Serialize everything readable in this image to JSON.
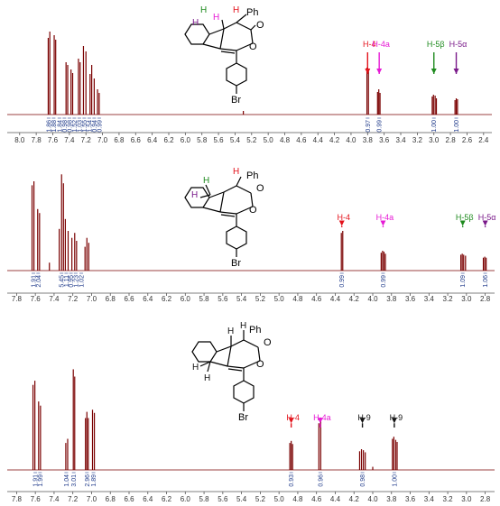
{
  "colors": {
    "spectrum": "#7a0000",
    "integral_text": "#1f3a8a",
    "h4": "#e3121b",
    "h4a": "#e61ad5",
    "h5b": "#1e8a1e",
    "h5a": "#7a1a8a",
    "h9": "#111111",
    "axis": "#555555"
  },
  "chart_data": [
    {
      "type": "line",
      "panel": "top",
      "xlim": [
        8.15,
        2.3
      ],
      "ticks": [
        8.0,
        7.8,
        7.6,
        7.4,
        7.2,
        7.0,
        6.8,
        6.6,
        6.4,
        6.2,
        6.0,
        5.8,
        5.6,
        5.4,
        5.2,
        5.0,
        4.8,
        4.6,
        4.4,
        4.2,
        4.0,
        3.8,
        3.6,
        3.4,
        3.2,
        3.0,
        2.8,
        2.6,
        2.4
      ],
      "tick_labels": [
        "8.0",
        "7.8",
        "7.6",
        "7.4",
        "7.2",
        "7.0",
        "6.8",
        "6.6",
        "6.4",
        "6.2",
        "6.0",
        "5.8",
        "5.6",
        "5.4",
        "5.2",
        "5.0",
        "4.8",
        "4.6",
        "4.4",
        "4.2",
        "4.0",
        "3.8",
        "3.6",
        "3.4",
        "3.2",
        "3.0",
        "2.8",
        "2.6",
        "2.4"
      ],
      "peaks": [
        {
          "x": 7.655,
          "y": 0.85
        },
        {
          "x": 7.636,
          "y": 0.92
        },
        {
          "x": 7.583,
          "y": 0.88
        },
        {
          "x": 7.565,
          "y": 0.83
        },
        {
          "x": 7.44,
          "y": 0.58
        },
        {
          "x": 7.42,
          "y": 0.55
        },
        {
          "x": 7.38,
          "y": 0.5
        },
        {
          "x": 7.36,
          "y": 0.46
        },
        {
          "x": 7.29,
          "y": 0.62
        },
        {
          "x": 7.27,
          "y": 0.58
        },
        {
          "x": 7.23,
          "y": 0.76
        },
        {
          "x": 7.2,
          "y": 0.7
        },
        {
          "x": 7.15,
          "y": 0.45
        },
        {
          "x": 7.13,
          "y": 0.55
        },
        {
          "x": 7.1,
          "y": 0.4
        },
        {
          "x": 7.06,
          "y": 0.28
        },
        {
          "x": 7.04,
          "y": 0.24
        },
        {
          "x": 5.3,
          "y": 0.04
        },
        {
          "x": 3.808,
          "y": 0.52
        },
        {
          "x": 3.79,
          "y": 0.5
        },
        {
          "x": 3.68,
          "y": 0.25
        },
        {
          "x": 3.665,
          "y": 0.28
        },
        {
          "x": 3.65,
          "y": 0.24
        },
        {
          "x": 3.02,
          "y": 0.2
        },
        {
          "x": 3.005,
          "y": 0.22
        },
        {
          "x": 2.985,
          "y": 0.21
        },
        {
          "x": 2.97,
          "y": 0.18
        },
        {
          "x": 2.745,
          "y": 0.16
        },
        {
          "x": 2.73,
          "y": 0.18
        },
        {
          "x": 2.715,
          "y": 0.17
        }
      ],
      "integrals": [
        {
          "x": 7.65,
          "label": "1.86"
        },
        {
          "x": 7.59,
          "label": "1.88"
        },
        {
          "x": 7.52,
          "label": "1.84"
        },
        {
          "x": 7.46,
          "label": "0.98"
        },
        {
          "x": 7.4,
          "label": "0.98"
        },
        {
          "x": 7.34,
          "label": "1.52"
        },
        {
          "x": 7.28,
          "label": "1.03"
        },
        {
          "x": 7.22,
          "label": "1.55"
        },
        {
          "x": 7.16,
          "label": "1.54"
        },
        {
          "x": 7.1,
          "label": "0.94"
        },
        {
          "x": 7.04,
          "label": "0.99"
        },
        {
          "x": 3.8,
          "label": "0.97"
        },
        {
          "x": 3.66,
          "label": "0.99"
        },
        {
          "x": 3.0,
          "label": "1.00"
        },
        {
          "x": 2.73,
          "label": "1.00"
        }
      ],
      "annotations": [
        {
          "label": "H-4",
          "color_key": "h4",
          "x": 3.8
        },
        {
          "label": "H-4a",
          "color_key": "h4a",
          "x": 3.66
        },
        {
          "label": "H-5β",
          "color_key": "h5b",
          "x": 3.0
        },
        {
          "label": "H-5α",
          "color_key": "h5a",
          "x": 2.73
        }
      ]
    },
    {
      "type": "line",
      "panel": "middle",
      "xlim": [
        7.9,
        2.7
      ],
      "ticks": [
        7.8,
        7.6,
        7.4,
        7.2,
        7.0,
        6.8,
        6.6,
        6.4,
        6.2,
        6.0,
        5.8,
        5.6,
        5.4,
        5.2,
        5.0,
        4.8,
        4.6,
        4.4,
        4.2,
        4.0,
        3.8,
        3.6,
        3.4,
        3.2,
        3.0,
        2.8
      ],
      "tick_labels": [
        "7.8",
        "7.6",
        "7.4",
        "7.2",
        "7.0",
        "6.8",
        "6.6",
        "6.4",
        "6.2",
        "6.0",
        "5.8",
        "5.6",
        "5.4",
        "5.2",
        "5.0",
        "4.8",
        "4.6",
        "4.4",
        "4.2",
        "4.0",
        "3.8",
        "3.6",
        "3.4",
        "3.2",
        "3.0",
        "2.8"
      ],
      "peaks": [
        {
          "x": 7.635,
          "y": 0.86
        },
        {
          "x": 7.615,
          "y": 0.9
        },
        {
          "x": 7.575,
          "y": 0.62
        },
        {
          "x": 7.555,
          "y": 0.58
        },
        {
          "x": 7.45,
          "y": 0.08
        },
        {
          "x": 7.345,
          "y": 0.42
        },
        {
          "x": 7.32,
          "y": 0.97
        },
        {
          "x": 7.3,
          "y": 0.88
        },
        {
          "x": 7.28,
          "y": 0.52
        },
        {
          "x": 7.25,
          "y": 0.4
        },
        {
          "x": 7.21,
          "y": 0.33
        },
        {
          "x": 7.18,
          "y": 0.38
        },
        {
          "x": 7.16,
          "y": 0.3
        },
        {
          "x": 7.07,
          "y": 0.24
        },
        {
          "x": 7.05,
          "y": 0.33
        },
        {
          "x": 7.03,
          "y": 0.28
        },
        {
          "x": 4.335,
          "y": 0.38
        },
        {
          "x": 4.32,
          "y": 0.4
        },
        {
          "x": 3.91,
          "y": 0.18
        },
        {
          "x": 3.895,
          "y": 0.2
        },
        {
          "x": 3.88,
          "y": 0.19
        },
        {
          "x": 3.865,
          "y": 0.17
        },
        {
          "x": 3.06,
          "y": 0.16
        },
        {
          "x": 3.045,
          "y": 0.17
        },
        {
          "x": 3.03,
          "y": 0.16
        },
        {
          "x": 3.01,
          "y": 0.15
        },
        {
          "x": 2.82,
          "y": 0.13
        },
        {
          "x": 2.805,
          "y": 0.14
        },
        {
          "x": 2.79,
          "y": 0.13
        }
      ],
      "integrals": [
        {
          "x": 7.62,
          "label": "1.91"
        },
        {
          "x": 7.57,
          "label": "2.04"
        },
        {
          "x": 7.32,
          "label": "5.45"
        },
        {
          "x": 7.27,
          "label": "1.11"
        },
        {
          "x": 7.22,
          "label": "0.95"
        },
        {
          "x": 7.17,
          "label": "1.23"
        },
        {
          "x": 7.11,
          "label": "1.02"
        },
        {
          "x": 4.33,
          "label": "0.99"
        },
        {
          "x": 3.89,
          "label": "0.99"
        },
        {
          "x": 3.04,
          "label": "1.09"
        },
        {
          "x": 2.8,
          "label": "1.06"
        }
      ],
      "annotations": [
        {
          "label": "H-4",
          "color_key": "h4",
          "x": 4.33
        },
        {
          "label": "H-4a",
          "color_key": "h4a",
          "x": 3.89
        },
        {
          "label": "H-5β",
          "color_key": "h5b",
          "x": 3.04
        },
        {
          "label": "H-5α",
          "color_key": "h5a",
          "x": 2.8
        }
      ]
    },
    {
      "type": "line",
      "panel": "bottom",
      "xlim": [
        7.9,
        2.7
      ],
      "ticks": [
        7.8,
        7.6,
        7.4,
        7.2,
        7.0,
        6.8,
        6.6,
        6.4,
        6.2,
        6.0,
        5.8,
        5.6,
        5.4,
        5.2,
        5.0,
        4.8,
        4.6,
        4.4,
        4.2,
        4.0,
        3.8,
        3.6,
        3.4,
        3.2,
        3.0,
        2.8
      ],
      "tick_labels": [
        "7.8",
        "7.6",
        "7.4",
        "7.2",
        "7.0",
        "6.8",
        "6.6",
        "6.4",
        "6.2",
        "6.0",
        "5.8",
        "5.6",
        "5.4",
        "5.2",
        "5.0",
        "4.8",
        "4.6",
        "4.4",
        "4.2",
        "4.0",
        "3.8",
        "3.6",
        "3.4",
        "3.2",
        "3.0",
        "2.8"
      ],
      "peaks": [
        {
          "x": 7.625,
          "y": 0.82
        },
        {
          "x": 7.605,
          "y": 0.86
        },
        {
          "x": 7.565,
          "y": 0.66
        },
        {
          "x": 7.545,
          "y": 0.62
        },
        {
          "x": 7.275,
          "y": 0.26
        },
        {
          "x": 7.255,
          "y": 0.3
        },
        {
          "x": 7.195,
          "y": 0.97
        },
        {
          "x": 7.18,
          "y": 0.9
        },
        {
          "x": 7.065,
          "y": 0.5
        },
        {
          "x": 7.05,
          "y": 0.56
        },
        {
          "x": 7.035,
          "y": 0.5
        },
        {
          "x": 6.99,
          "y": 0.58
        },
        {
          "x": 6.97,
          "y": 0.55
        },
        {
          "x": 4.885,
          "y": 0.26
        },
        {
          "x": 4.87,
          "y": 0.28
        },
        {
          "x": 4.855,
          "y": 0.25
        },
        {
          "x": 4.575,
          "y": 0.45
        },
        {
          "x": 4.555,
          "y": 0.47
        },
        {
          "x": 4.14,
          "y": 0.18
        },
        {
          "x": 4.12,
          "y": 0.2
        },
        {
          "x": 4.1,
          "y": 0.19
        },
        {
          "x": 4.08,
          "y": 0.17
        },
        {
          "x": 4.0,
          "y": 0.03
        },
        {
          "x": 3.79,
          "y": 0.3
        },
        {
          "x": 3.775,
          "y": 0.32
        },
        {
          "x": 3.755,
          "y": 0.29
        },
        {
          "x": 3.74,
          "y": 0.27
        }
      ],
      "integrals": [
        {
          "x": 7.6,
          "label": "1.91"
        },
        {
          "x": 7.55,
          "label": "1.99"
        },
        {
          "x": 7.27,
          "label": "1.04"
        },
        {
          "x": 7.19,
          "label": "3.01"
        },
        {
          "x": 7.05,
          "label": "2.96"
        },
        {
          "x": 6.98,
          "label": "1.89"
        },
        {
          "x": 4.87,
          "label": "0.93"
        },
        {
          "x": 4.56,
          "label": "0.96"
        },
        {
          "x": 4.11,
          "label": "0.98"
        },
        {
          "x": 3.77,
          "label": "1.00"
        }
      ],
      "annotations": [
        {
          "label": "H-4",
          "color_key": "h4",
          "x": 4.87
        },
        {
          "label": "H-4a",
          "color_key": "h4a",
          "x": 4.56
        },
        {
          "label": "H-9",
          "color_key": "h9",
          "x": 4.11
        },
        {
          "label": "H-9",
          "color_key": "h9",
          "x": 3.77
        }
      ]
    }
  ],
  "structures": [
    {
      "h_labels": [
        {
          "text": "H",
          "color_key": "h5a"
        },
        {
          "text": "H",
          "color_key": "h4a"
        },
        {
          "text": "H",
          "color_key": "h4"
        },
        {
          "text": "H",
          "color_key": "h5b"
        }
      ],
      "ph": "Ph",
      "o1": "O",
      "o2": "O",
      "br": "Br"
    },
    {
      "h_labels": [
        {
          "text": "H",
          "color_key": "h5b"
        },
        {
          "text": "H",
          "color_key": "h5a"
        },
        {
          "text": "H",
          "color_key": "h4"
        }
      ],
      "ph": "Ph",
      "o1": "O",
      "o2": "O",
      "br": "Br"
    },
    {
      "h_labels": [
        {
          "text": "H",
          "color_key": "h9"
        },
        {
          "text": "H",
          "color_key": "h9"
        },
        {
          "text": "H",
          "color_key": "h9"
        },
        {
          "text": "H",
          "color_key": "h9"
        }
      ],
      "ph": "Ph",
      "o1": "O",
      "o2": "O",
      "br": "Br"
    }
  ]
}
